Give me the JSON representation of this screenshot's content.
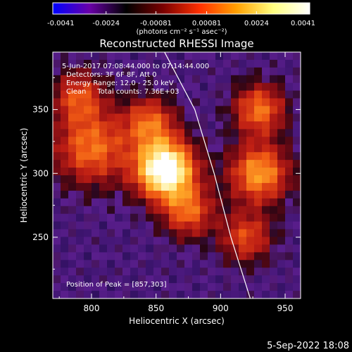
{
  "chart_data": {
    "type": "heatmap",
    "title": "Reconstructed RHESSI Image",
    "colorbar": {
      "ticks": [
        "-0.0041",
        "-0.0024",
        "-0.00081",
        "0.00081",
        "0.0024",
        "0.0041"
      ],
      "tick_values": [
        -0.0041,
        -0.0024,
        -0.00081,
        0.00081,
        0.0024,
        0.0041
      ],
      "range": [
        -0.0041,
        0.0041
      ],
      "unit_label": "(photons cm⁻² s⁻¹ asec⁻²)",
      "colors": [
        "#0000ff",
        "#6a00a8",
        "#000000",
        "#7a0000",
        "#ff3000",
        "#ffa000",
        "#ffff80",
        "#ffffff"
      ]
    },
    "annotations": {
      "time_range": "5-Jun-2017 07:08:44.000 to 07:14:44.000",
      "detectors": "Detectors: 3F 6F 8F, Att 0",
      "energy": "Energy Range: 12.0 - 25.0 keV",
      "clean_counts": "Clean     Total counts: 7.36E+03",
      "peak": "Position of Peak = [857,303]"
    },
    "xlabel": "Heliocentric X (arcsec)",
    "ylabel": "Heliocentric Y (arcsec)",
    "xlim": [
      770,
      962
    ],
    "ylim": [
      202,
      395
    ],
    "xticks": [
      800,
      850,
      900,
      950
    ],
    "yticks": [
      250,
      300,
      350
    ],
    "peak": [
      857,
      303
    ],
    "sources": [
      {
        "x": 857,
        "y": 303,
        "intensity": 1.0,
        "sigma": 16
      },
      {
        "x": 845,
        "y": 340,
        "intensity": 0.45,
        "sigma": 14
      },
      {
        "x": 875,
        "y": 270,
        "intensity": 0.45,
        "sigma": 14
      },
      {
        "x": 800,
        "y": 320,
        "intensity": 0.5,
        "sigma": 20
      },
      {
        "x": 790,
        "y": 360,
        "intensity": 0.4,
        "sigma": 14
      },
      {
        "x": 930,
        "y": 300,
        "intensity": 0.6,
        "sigma": 16
      },
      {
        "x": 930,
        "y": 350,
        "intensity": 0.5,
        "sigma": 14
      },
      {
        "x": 920,
        "y": 250,
        "intensity": 0.4,
        "sigma": 14
      }
    ],
    "limb": [
      [
        855,
        398
      ],
      [
        880,
        350
      ],
      [
        895,
        300
      ],
      [
        908,
        250
      ],
      [
        923,
        202
      ]
    ]
  },
  "footer": {
    "date": "5-Sep-2022 18:08"
  }
}
